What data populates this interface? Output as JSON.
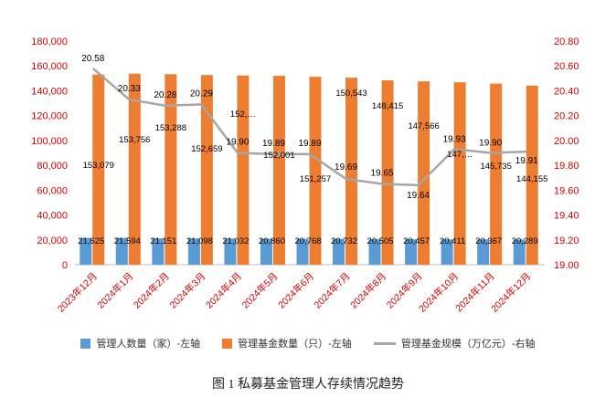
{
  "figure": {
    "caption": "图 1 私募基金管理人存续情况趋势"
  },
  "chart_data": {
    "type": "combo",
    "categories": [
      "2023年12月",
      "2024年1月",
      "2024年2月",
      "2024年3月",
      "2024年4月",
      "2024年5月",
      "2024年6月",
      "2024年7月",
      "2024年8月",
      "2024年9月",
      "2024年10月",
      "2024年11月",
      "2024年12月"
    ],
    "series": [
      {
        "name": "管理人数量（家）-左轴",
        "type": "bar",
        "axis": "left",
        "color": "#5b9bd5",
        "values": [
          21625,
          21594,
          21151,
          21098,
          21032,
          20860,
          20768,
          20732,
          20505,
          20457,
          20411,
          20367,
          20289
        ],
        "labels": [
          "21,625",
          "21,594",
          "21,151",
          "21,098",
          "21,032",
          "20,860",
          "20,768",
          "20,732",
          "20,505",
          "20,457",
          "20,411",
          "20,367",
          "20,289"
        ]
      },
      {
        "name": "管理基金数量（只）-左轴",
        "type": "bar",
        "axis": "left",
        "color": "#ed7d31",
        "values": [
          153079,
          153756,
          153288,
          152659,
          152300,
          152001,
          151257,
          150543,
          148415,
          147566,
          146800,
          145735,
          144155
        ],
        "labels": [
          "153,079",
          "153,756",
          "153,288",
          "152,659",
          "152,…",
          "152,001",
          "151,257",
          "150,543",
          "148,415",
          "147,566",
          "147,…",
          "145,735",
          "144,155"
        ]
      },
      {
        "name": "管理基金规模（万亿元）-右轴",
        "type": "line",
        "axis": "right",
        "color": "#a6a6a6",
        "values": [
          20.58,
          20.33,
          20.28,
          20.29,
          19.9,
          19.89,
          19.89,
          19.69,
          19.65,
          19.64,
          19.93,
          19.9,
          19.91
        ],
        "labels": [
          "20.58",
          "20.33",
          "20.28",
          "20.29",
          "19.90",
          "19.89",
          "19.89",
          "19.69",
          "19.65",
          "19.64",
          "19.93",
          "19.90",
          "19.91"
        ]
      }
    ],
    "left_axis": {
      "min": 0,
      "max": 180000,
      "step": 20000,
      "tick_labels": [
        "180,000",
        "160,000",
        "140,000",
        "120,000",
        "100,000",
        "80,000",
        "60,000",
        "40,000",
        "20,000",
        "0"
      ]
    },
    "right_axis": {
      "min": 19.0,
      "max": 20.8,
      "step": 0.2,
      "tick_labels": [
        "20.80",
        "20.60",
        "20.40",
        "20.20",
        "20.00",
        "19.80",
        "19.60",
        "19.40",
        "19.20",
        "19.00"
      ]
    },
    "tick_label_color": "#d40000",
    "data_label_color": "#000000",
    "axis_line_color": "#bfbfbf",
    "gridlines": false,
    "legend_position": "bottom"
  }
}
